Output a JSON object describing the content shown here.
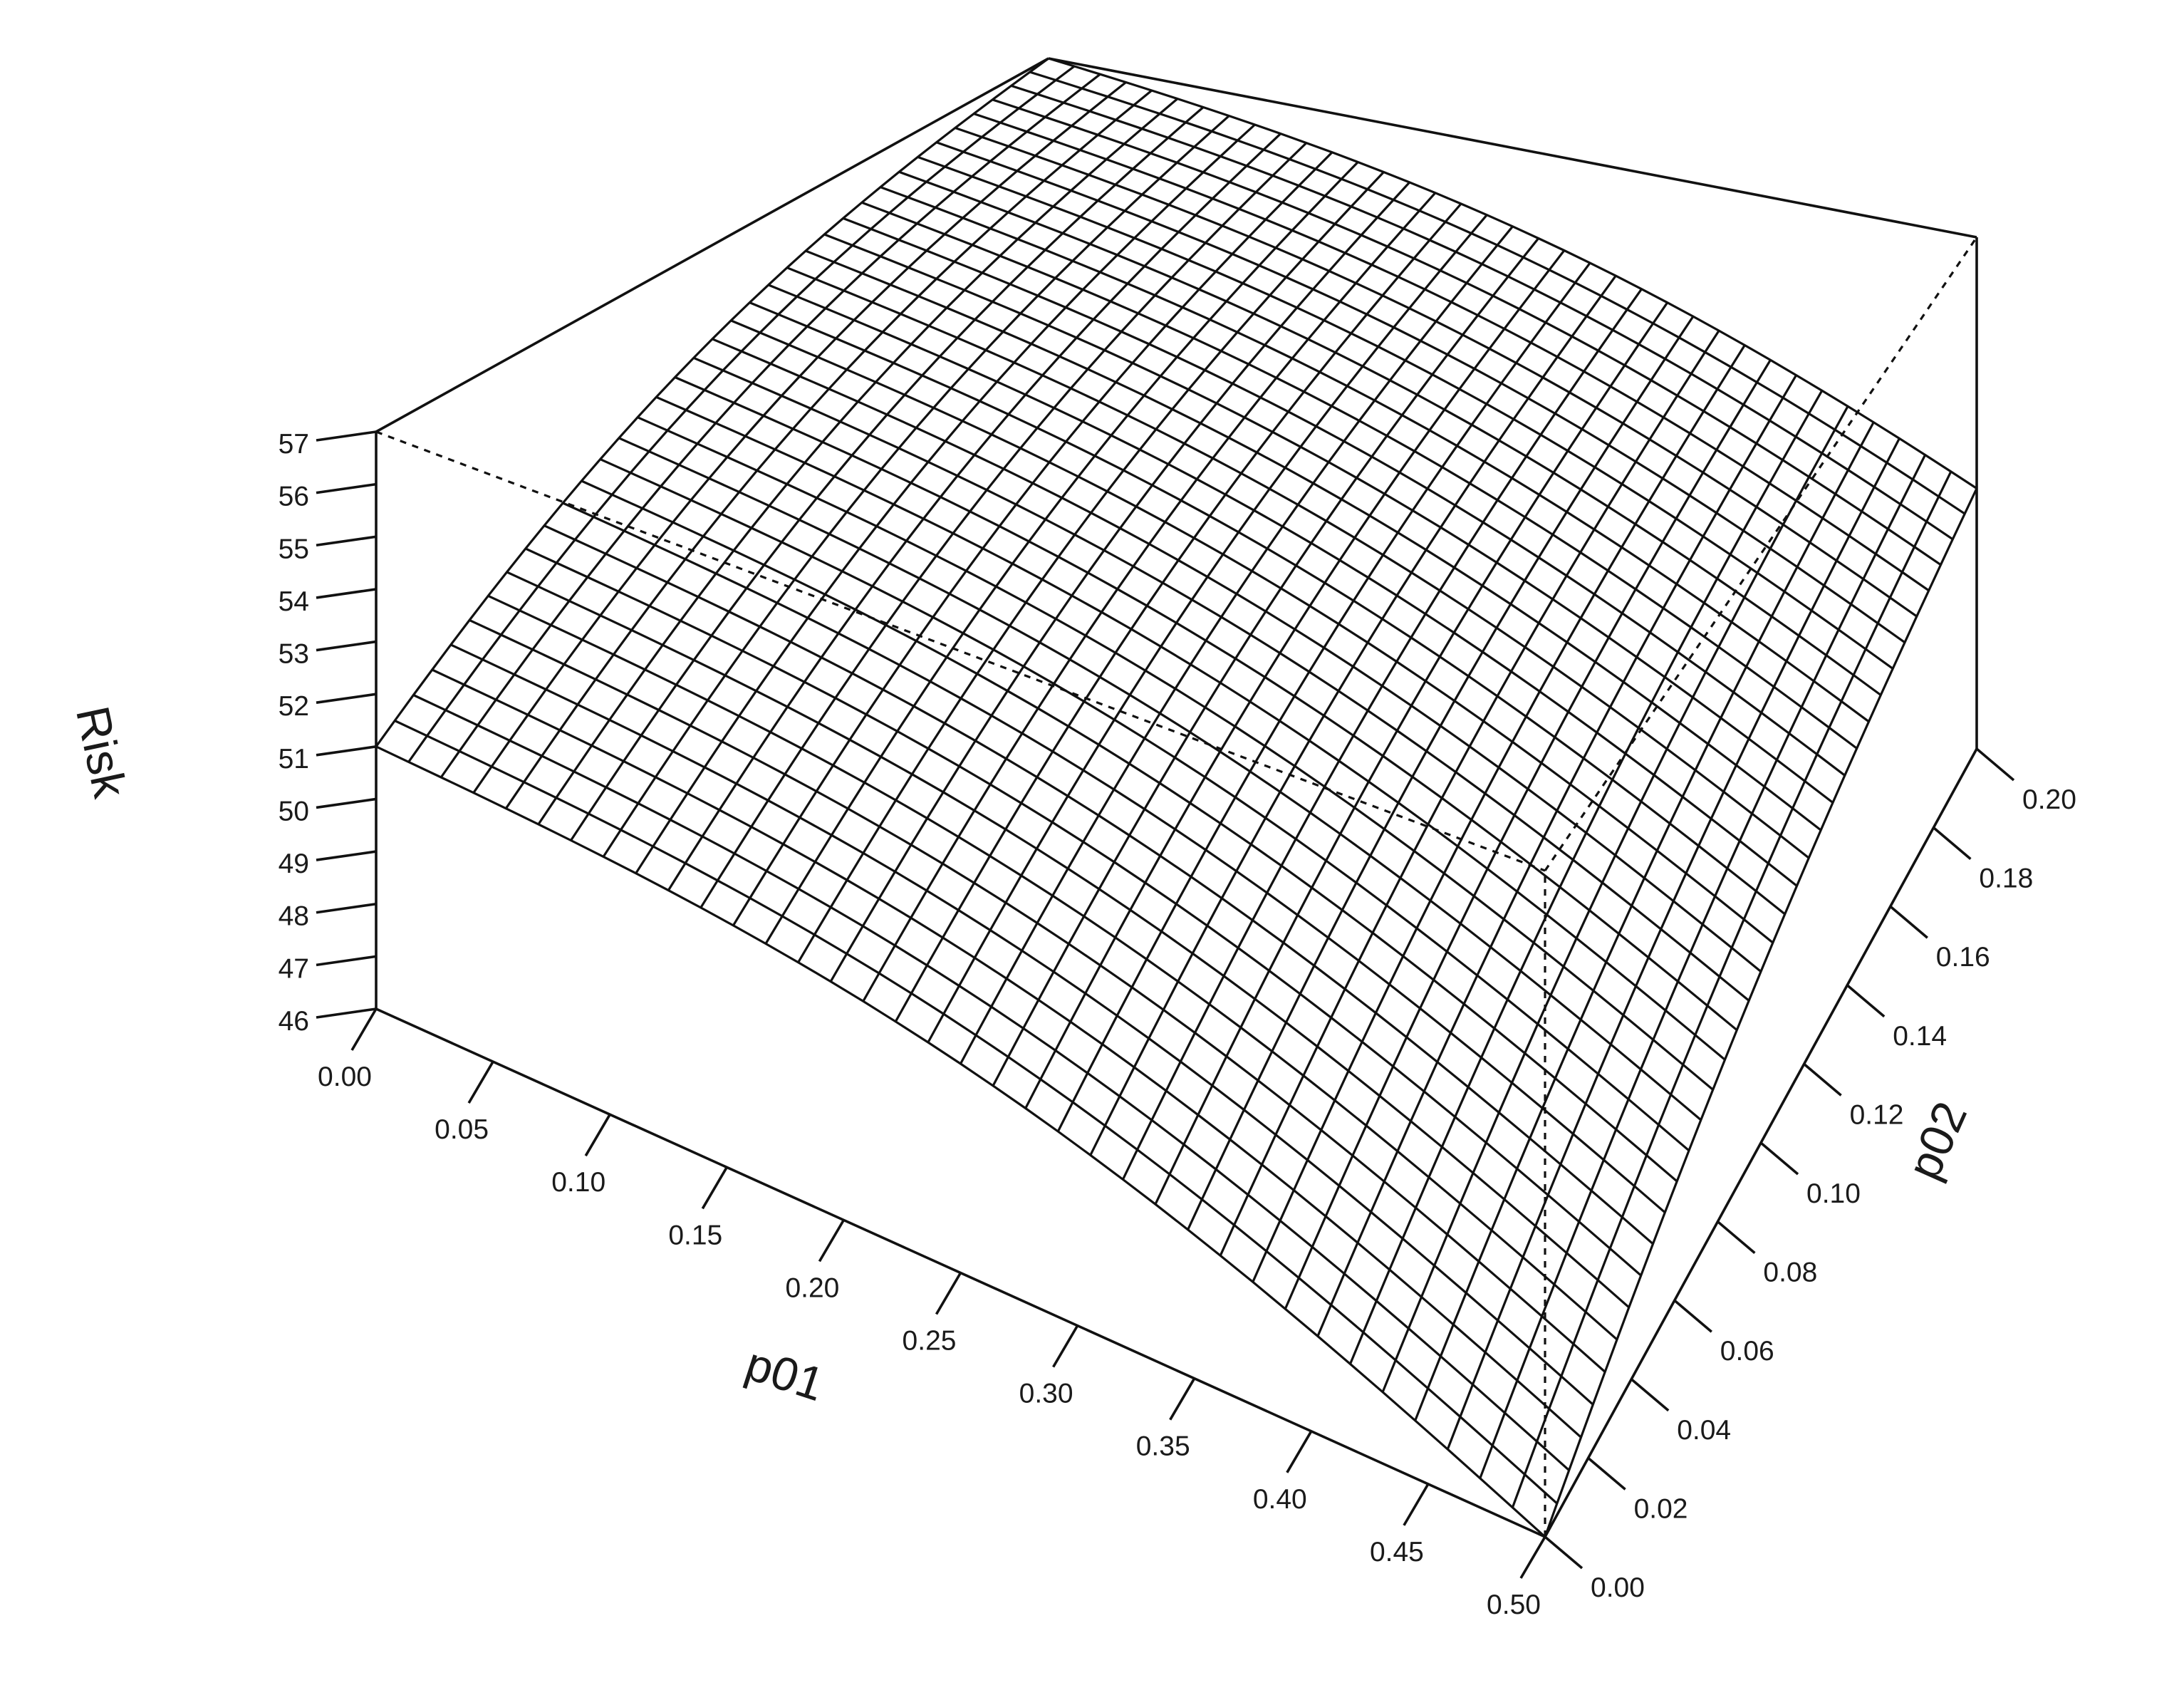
{
  "chart_data": {
    "type": "surface",
    "title": "",
    "x_axis": {
      "label": "p01",
      "range": [
        0.0,
        0.5
      ],
      "ticks": [
        "0.00",
        "0.05",
        "0.10",
        "0.15",
        "0.20",
        "0.25",
        "0.30",
        "0.35",
        "0.40",
        "0.45",
        "0.50"
      ]
    },
    "y_axis": {
      "label": "p02",
      "range": [
        0.0,
        0.2
      ],
      "ticks": [
        "0.00",
        "0.02",
        "0.04",
        "0.06",
        "0.08",
        "0.10",
        "0.12",
        "0.14",
        "0.16",
        "0.18",
        "0.20"
      ]
    },
    "z_axis": {
      "label": "Risk",
      "range": [
        46,
        57
      ],
      "ticks": [
        "46",
        "47",
        "48",
        "49",
        "50",
        "51",
        "52",
        "53",
        "54",
        "55",
        "56",
        "57"
      ]
    },
    "corner_values": [
      {
        "p01": 0.0,
        "p02": 0.0,
        "risk": 51.0
      },
      {
        "p01": 0.5,
        "p02": 0.0,
        "risk": 46.0
      },
      {
        "p01": 0.0,
        "p02": 0.2,
        "risk": 57.0
      },
      {
        "p01": 0.5,
        "p02": 0.2,
        "risk": 51.6
      }
    ],
    "grid_resolution": [
      36,
      36
    ],
    "grid": false,
    "legend": "none",
    "colors": {
      "lines": "#111111",
      "background": "#ffffff"
    }
  }
}
